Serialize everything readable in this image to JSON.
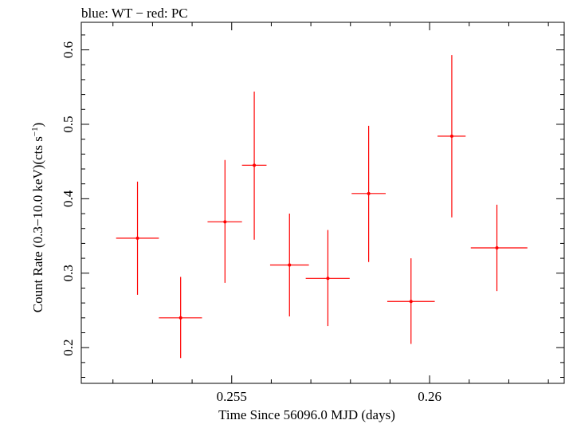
{
  "chart_data": {
    "type": "scatter",
    "title": "blue: WT − red: PC",
    "xlabel": "Time Since 56096.0 MJD (days)",
    "ylabel_main": "Count Rate (0.3−10.0 keV)(cts s",
    "ylabel_sup": "−1",
    "ylabel_close": ")",
    "xlim": [
      0.2512,
      0.2634
    ],
    "ylim": [
      0.152,
      0.637
    ],
    "xticks": [
      0.255,
      0.26
    ],
    "xtick_labels": [
      "0.255",
      "0.26"
    ],
    "yticks": [
      0.2,
      0.3,
      0.4,
      0.5,
      0.6
    ],
    "ytick_labels": [
      "0.2",
      "0.3",
      "0.4",
      "0.5",
      "0.6"
    ],
    "grid": false,
    "series": [
      {
        "color": "#ff0000",
        "points": [
          {
            "x": 0.25262,
            "y": 0.347,
            "xlo": 0.25208,
            "xhi": 0.25316,
            "ylo": 0.271,
            "yhi": 0.423
          },
          {
            "x": 0.25371,
            "y": 0.24,
            "xlo": 0.25316,
            "xhi": 0.25425,
            "ylo": 0.186,
            "yhi": 0.295
          },
          {
            "x": 0.25483,
            "y": 0.369,
            "xlo": 0.25439,
            "xhi": 0.25526,
            "ylo": 0.287,
            "yhi": 0.452
          },
          {
            "x": 0.25557,
            "y": 0.445,
            "xlo": 0.25526,
            "xhi": 0.25588,
            "ylo": 0.345,
            "yhi": 0.544
          },
          {
            "x": 0.25646,
            "y": 0.311,
            "xlo": 0.25597,
            "xhi": 0.25695,
            "ylo": 0.242,
            "yhi": 0.38
          },
          {
            "x": 0.25743,
            "y": 0.293,
            "xlo": 0.25687,
            "xhi": 0.25798,
            "ylo": 0.229,
            "yhi": 0.358
          },
          {
            "x": 0.25846,
            "y": 0.407,
            "xlo": 0.25803,
            "xhi": 0.25889,
            "ylo": 0.315,
            "yhi": 0.498
          },
          {
            "x": 0.25953,
            "y": 0.262,
            "xlo": 0.25893,
            "xhi": 0.26013,
            "ylo": 0.205,
            "yhi": 0.32
          },
          {
            "x": 0.26056,
            "y": 0.484,
            "xlo": 0.2602,
            "xhi": 0.26091,
            "ylo": 0.375,
            "yhi": 0.593
          },
          {
            "x": 0.2617,
            "y": 0.334,
            "xlo": 0.26104,
            "xhi": 0.26247,
            "ylo": 0.276,
            "yhi": 0.392
          }
        ]
      }
    ]
  }
}
